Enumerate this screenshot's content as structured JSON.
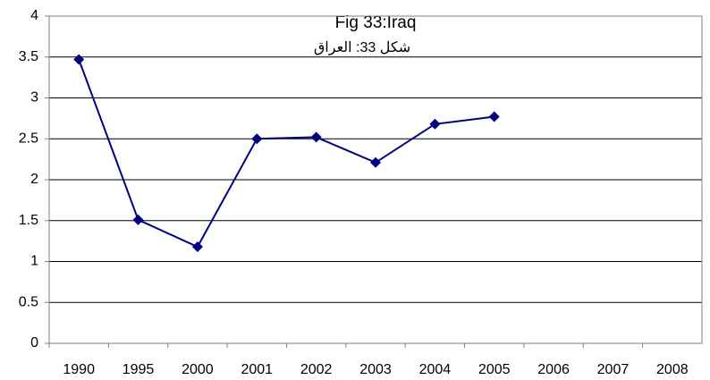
{
  "chart_data": {
    "type": "line",
    "title": "Fig 33:Iraq",
    "subtitle": "شكل 33: العراق",
    "categories": [
      "1990",
      "1995",
      "2000",
      "2001",
      "2002",
      "2003",
      "2004",
      "2005",
      "2006",
      "2007",
      "2008"
    ],
    "series": [
      {
        "name": null,
        "color": "#000080",
        "values": [
          3.47,
          1.51,
          1.18,
          2.5,
          2.52,
          2.21,
          2.68,
          2.77,
          null,
          null,
          null
        ]
      }
    ],
    "ylim": [
      0,
      4
    ],
    "yticks": [
      0,
      0.5,
      1,
      1.5,
      2,
      2.5,
      3,
      3.5,
      4
    ],
    "grid": true
  }
}
